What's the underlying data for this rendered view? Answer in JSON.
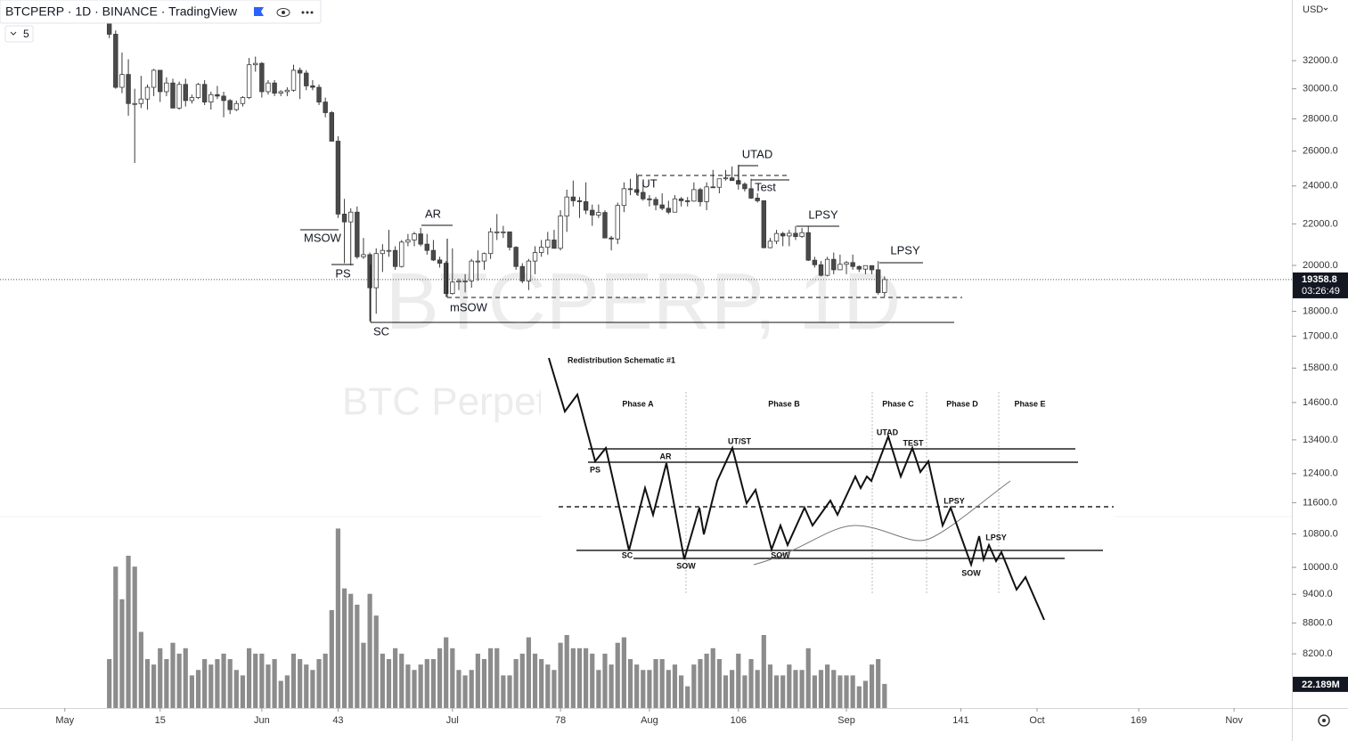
{
  "toolbar": {
    "title": "BTCPERP · 1D · BINANCE · TradingView",
    "indicator_count": 5,
    "currency": "USD"
  },
  "chart_data": {
    "type": "candlestick",
    "watermark": "BTCPERP, 1D",
    "watermark_subtitle": "BTC Perpetual Futures",
    "x": [
      7,
      8,
      9,
      10,
      11,
      12,
      13,
      14,
      15,
      16,
      17,
      18,
      19,
      20,
      21,
      22,
      23,
      24,
      25,
      26,
      27,
      28,
      29,
      30,
      31,
      32,
      33,
      34,
      35,
      36,
      37,
      38,
      39,
      40,
      41,
      42,
      43,
      44,
      45,
      46,
      47,
      48,
      49,
      50,
      51,
      52,
      53,
      54,
      55,
      56,
      57,
      58,
      59,
      60,
      61,
      62,
      63,
      64,
      65,
      66,
      67,
      68,
      69,
      70,
      71,
      72,
      73,
      74,
      75,
      76,
      77,
      78,
      79,
      80,
      81,
      82,
      83,
      84,
      85,
      86,
      87,
      88,
      89,
      90,
      91,
      92,
      93,
      94,
      95,
      96,
      97,
      98,
      99,
      100,
      101,
      102,
      103,
      104,
      105,
      106,
      107,
      108,
      109,
      110,
      111,
      112,
      113,
      114,
      115,
      116,
      117,
      118,
      119,
      120,
      121,
      122,
      123,
      124,
      125,
      126,
      127,
      128,
      129
    ],
    "ohlc": [
      [
        35400,
        35600,
        33700,
        34000
      ],
      [
        34000,
        34300,
        30000,
        30100
      ],
      [
        30100,
        32600,
        29700,
        31000
      ],
      [
        31000,
        32100,
        28200,
        29000
      ],
      [
        29000,
        30000,
        25300,
        29000
      ],
      [
        29000,
        30900,
        28700,
        29300
      ],
      [
        29300,
        30300,
        28600,
        30100
      ],
      [
        30100,
        31400,
        29500,
        31300
      ],
      [
        31300,
        31300,
        29100,
        29800
      ],
      [
        29800,
        30800,
        29500,
        30400
      ],
      [
        30400,
        30700,
        28700,
        28700
      ],
      [
        28700,
        30500,
        28600,
        30300
      ],
      [
        30300,
        30700,
        28800,
        29200
      ],
      [
        29200,
        29600,
        29000,
        29400
      ],
      [
        29400,
        30400,
        29300,
        30300
      ],
      [
        30300,
        30600,
        28900,
        29100
      ],
      [
        29100,
        29800,
        28600,
        29600
      ],
      [
        29600,
        30200,
        29300,
        29500
      ],
      [
        29500,
        29800,
        28100,
        29200
      ],
      [
        29200,
        29300,
        28300,
        28600
      ],
      [
        28600,
        29200,
        28500,
        29000
      ],
      [
        29000,
        29500,
        28800,
        29400
      ],
      [
        29400,
        32200,
        29300,
        31700
      ],
      [
        31700,
        32300,
        31200,
        31800
      ],
      [
        31800,
        31900,
        29400,
        29800
      ],
      [
        29800,
        30600,
        29600,
        30400
      ],
      [
        30400,
        30600,
        29500,
        29700
      ],
      [
        29700,
        29900,
        29500,
        29800
      ],
      [
        29800,
        30100,
        29500,
        29900
      ],
      [
        29900,
        31700,
        29800,
        31300
      ],
      [
        31300,
        31500,
        29300,
        31100
      ],
      [
        31100,
        31300,
        29900,
        30200
      ],
      [
        30200,
        30600,
        29900,
        30100
      ],
      [
        30100,
        30300,
        28900,
        29100
      ],
      [
        29100,
        29400,
        28100,
        28400
      ],
      [
        28400,
        28500,
        26600,
        26600
      ],
      [
        26600,
        26900,
        22300,
        22500
      ],
      [
        22500,
        23300,
        20100,
        22100
      ],
      [
        22100,
        22800,
        20000,
        22600
      ],
      [
        22600,
        22900,
        20300,
        20400
      ],
      [
        20400,
        21300,
        20300,
        20500
      ],
      [
        20500,
        20600,
        17600,
        19000
      ],
      [
        19000,
        20800,
        17900,
        20550
      ],
      [
        20550,
        21000,
        19700,
        20700
      ],
      [
        20700,
        21700,
        20400,
        20700
      ],
      [
        20700,
        20900,
        19800,
        19950
      ],
      [
        19950,
        21200,
        19900,
        21100
      ],
      [
        21100,
        21500,
        20900,
        21200
      ],
      [
        21200,
        21600,
        20900,
        21500
      ],
      [
        21500,
        21800,
        20900,
        21000
      ],
      [
        21000,
        21500,
        20500,
        20700
      ],
      [
        20700,
        21200,
        20200,
        20250
      ],
      [
        20250,
        20400,
        19900,
        20100
      ],
      [
        20100,
        20200,
        18600,
        18750
      ],
      [
        18750,
        20800,
        18700,
        19250
      ],
      [
        19250,
        19400,
        18900,
        19300
      ],
      [
        19300,
        19600,
        18800,
        19300
      ],
      [
        19300,
        20300,
        19000,
        20200
      ],
      [
        20200,
        20700,
        19300,
        20200
      ],
      [
        20200,
        20600,
        19800,
        20550
      ],
      [
        20550,
        21800,
        20300,
        21600
      ],
      [
        21600,
        22500,
        21200,
        21600
      ],
      [
        21600,
        21900,
        21300,
        21600
      ],
      [
        21600,
        21600,
        20700,
        20850
      ],
      [
        20850,
        20900,
        19800,
        19950
      ],
      [
        19950,
        20100,
        19200,
        19300
      ],
      [
        19300,
        20300,
        18900,
        20200
      ],
      [
        20200,
        20900,
        19600,
        20600
      ],
      [
        20600,
        21200,
        20400,
        20850
      ],
      [
        20850,
        21600,
        20500,
        21200
      ],
      [
        21200,
        21700,
        20800,
        20800
      ],
      [
        20800,
        22700,
        20700,
        22400
      ],
      [
        22400,
        23800,
        21600,
        23400
      ],
      [
        23400,
        24300,
        22900,
        23200
      ],
      [
        23200,
        23400,
        22300,
        23150
      ],
      [
        23150,
        24200,
        22500,
        22700
      ],
      [
        22700,
        23000,
        21900,
        22450
      ],
      [
        22450,
        23000,
        22300,
        22580
      ],
      [
        22580,
        22700,
        21300,
        21300
      ],
      [
        21300,
        21400,
        20700,
        21250
      ],
      [
        21250,
        23100,
        21000,
        22950
      ],
      [
        22950,
        24200,
        22600,
        23850
      ],
      [
        23850,
        24400,
        23500,
        23800
      ],
      [
        23800,
        24700,
        23500,
        23650
      ],
      [
        23650,
        24200,
        23200,
        23300
      ],
      [
        23300,
        23500,
        22900,
        23270
      ],
      [
        23270,
        23400,
        22700,
        22980
      ],
      [
        22980,
        23600,
        22700,
        22800
      ],
      [
        22800,
        23200,
        22500,
        22600
      ],
      [
        22600,
        23500,
        22600,
        23300
      ],
      [
        23300,
        23400,
        22900,
        23200
      ],
      [
        23200,
        23400,
        22900,
        23180
      ],
      [
        23180,
        24200,
        23150,
        23800
      ],
      [
        23800,
        23900,
        22900,
        23150
      ],
      [
        23150,
        24200,
        22700,
        23950
      ],
      [
        23950,
        24900,
        23900,
        23930
      ],
      [
        23930,
        24400,
        23600,
        24400
      ],
      [
        24400,
        24900,
        24300,
        24450
      ],
      [
        24450,
        25100,
        24300,
        24300
      ],
      [
        24300,
        25200,
        23800,
        24100
      ],
      [
        24100,
        24200,
        23700,
        23850
      ],
      [
        23850,
        24400,
        23300,
        23340
      ],
      [
        23340,
        23600,
        23100,
        23200
      ],
      [
        23200,
        23200,
        20800,
        20830
      ],
      [
        20830,
        21300,
        20800,
        21140
      ],
      [
        21140,
        21700,
        21000,
        21520
      ],
      [
        21520,
        21600,
        20900,
        21400
      ],
      [
        21400,
        21700,
        20900,
        21530
      ],
      [
        21530,
        21900,
        21200,
        21370
      ],
      [
        21370,
        21800,
        21300,
        21560
      ],
      [
        21560,
        21900,
        20200,
        20240
      ],
      [
        20240,
        20400,
        19900,
        20030
      ],
      [
        20030,
        20200,
        19500,
        19550
      ],
      [
        19550,
        20400,
        19500,
        20280
      ],
      [
        20280,
        20600,
        19600,
        19800
      ],
      [
        19800,
        20500,
        19800,
        20050
      ],
      [
        20050,
        20200,
        19600,
        20130
      ],
      [
        20130,
        20500,
        19800,
        19950
      ],
      [
        19950,
        20000,
        19700,
        19830
      ],
      [
        19830,
        20000,
        19600,
        19990
      ],
      [
        19990,
        20000,
        19600,
        19800
      ],
      [
        19800,
        20200,
        18700,
        18790
      ],
      [
        18790,
        19500,
        18600,
        19358.8
      ]
    ],
    "volume": [
      45,
      130,
      100,
      140,
      130,
      70,
      45,
      40,
      55,
      45,
      60,
      50,
      55,
      30,
      35,
      45,
      40,
      45,
      50,
      45,
      35,
      30,
      55,
      50,
      50,
      40,
      45,
      25,
      30,
      50,
      45,
      40,
      35,
      45,
      50,
      90,
      165,
      110,
      105,
      95,
      60,
      105,
      85,
      50,
      45,
      55,
      50,
      40,
      35,
      40,
      45,
      45,
      55,
      65,
      55,
      35,
      30,
      35,
      50,
      45,
      55,
      55,
      30,
      30,
      45,
      50,
      65,
      50,
      45,
      40,
      35,
      60,
      70,
      55,
      55,
      55,
      50,
      35,
      50,
      40,
      60,
      65,
      45,
      40,
      35,
      35,
      45,
      45,
      35,
      40,
      30,
      20,
      40,
      45,
      50,
      55,
      45,
      30,
      35,
      50,
      30,
      45,
      35,
      70,
      40,
      30,
      30,
      40,
      35,
      35,
      55,
      30,
      35,
      40,
      35,
      30,
      30,
      30,
      20,
      25,
      40,
      45,
      22.189
    ],
    "volume_last_label": "22.189M",
    "countdown": "03:26:49",
    "volume_lim": [
      0,
      176
    ],
    "xlim": [
      -10.2,
      193.1
    ],
    "xticks": [
      {
        "value": 0,
        "label": "May"
      },
      15,
      {
        "value": 31,
        "label": "Jun"
      },
      43,
      {
        "value": 61,
        "label": "Jul"
      },
      78,
      {
        "value": 92,
        "label": "Aug"
      },
      106,
      {
        "value": 123,
        "label": "Sep"
      },
      141,
      {
        "value": 153,
        "label": "Oct"
      },
      169,
      {
        "value": 184,
        "label": "Nov"
      }
    ],
    "ylim": [
      7240,
      36780
    ],
    "log_scale": true,
    "yticks": [
      {
        "value": 32000,
        "label": "32000.0"
      },
      {
        "value": 30000,
        "label": "30000.0"
      },
      {
        "value": 28000,
        "label": "28000.0"
      },
      {
        "value": 26000,
        "label": "26000.0"
      },
      {
        "value": 24000,
        "label": "24000.0"
      },
      {
        "value": 22000,
        "label": "22000.0"
      },
      {
        "value": 20000,
        "label": "20000.0"
      },
      {
        "value": 18000,
        "label": "18000.0"
      },
      {
        "value": 17000,
        "label": "17000.0"
      },
      {
        "value": 15800,
        "label": "15800.0"
      },
      {
        "value": 14600,
        "label": "14600.0"
      },
      {
        "value": 13400,
        "label": "13400.0"
      },
      {
        "value": 12400,
        "label": "12400.0"
      },
      {
        "value": 11600,
        "label": "11600.0"
      },
      {
        "value": 10800,
        "label": "10800.0"
      },
      {
        "value": 10000,
        "label": "10000.0"
      },
      {
        "value": 9400,
        "label": "9400.0"
      },
      {
        "value": 8800,
        "label": "8800.0"
      },
      {
        "value": 8200,
        "label": "8200.0"
      }
    ],
    "annotations": [
      "MSOW",
      "PS",
      "AR",
      "SC",
      "mSOW",
      "UT",
      "UTAD",
      "Test",
      "LPSY",
      "LPSY"
    ],
    "up_color": "#ffffff",
    "down_color": "#4a4a4a",
    "volume_color": "#8c8c8c"
  },
  "inset": {
    "title": "Redistribution Schematic #1",
    "phases": [
      "Phase A",
      "Phase B",
      "Phase C",
      "Phase D",
      "Phase E"
    ],
    "labels": [
      "PS",
      "SC",
      "AR",
      "SOW",
      "UT/ST",
      "SOW",
      "UTAD",
      "TEST",
      "LPSY",
      "LPSY",
      "SOW"
    ]
  }
}
